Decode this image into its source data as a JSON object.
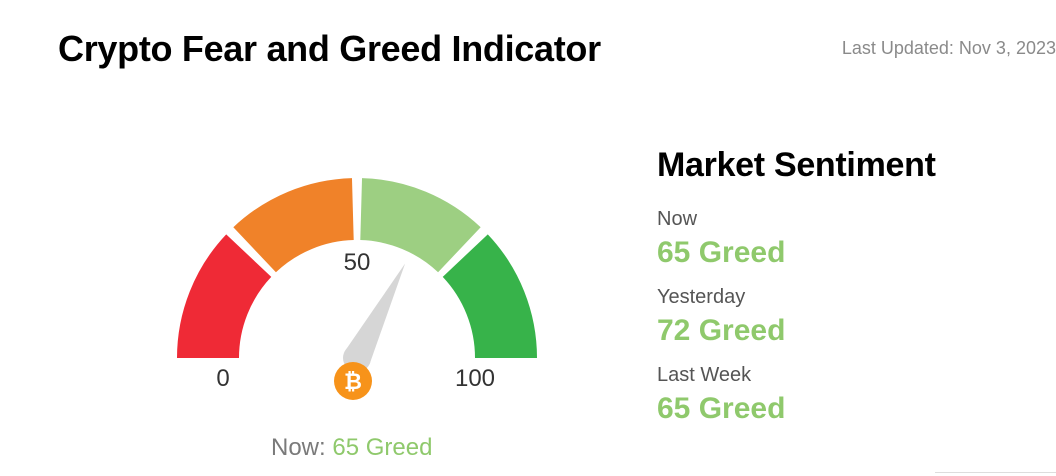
{
  "header": {
    "title": "Crypto Fear and Greed Indicator",
    "last_updated": "Last Updated: Nov 3, 2023"
  },
  "gauge": {
    "value": 65,
    "min_label": "0",
    "mid_label": "50",
    "max_label": "100",
    "needle_value": 65,
    "icon": "bitcoin-icon",
    "segments": [
      {
        "from": 0,
        "to": 25,
        "color": "#ef2a36"
      },
      {
        "from": 25,
        "to": 50,
        "color": "#f08229"
      },
      {
        "from": 50,
        "to": 75,
        "color": "#9dcf82"
      },
      {
        "from": 75,
        "to": 100,
        "color": "#37b34a"
      }
    ],
    "icon_color": "#f7931a",
    "now_label": "Now:",
    "now_value": "65 Greed"
  },
  "sentiment": {
    "title": "Market Sentiment",
    "rows": [
      {
        "label": "Now",
        "value": "65 Greed"
      },
      {
        "label": "Yesterday",
        "value": "72 Greed"
      },
      {
        "label": "Last Week",
        "value": "65 Greed"
      }
    ],
    "value_color": "#8fc96c"
  }
}
